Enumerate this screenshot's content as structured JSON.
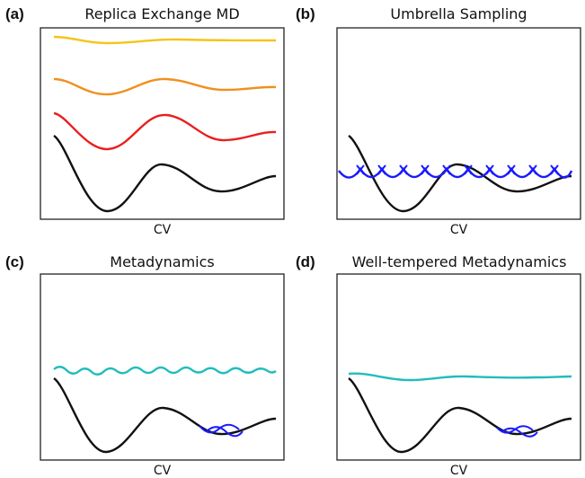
{
  "panels": [
    {
      "letter": "(a)",
      "title": "Replica Exchange MD",
      "xlabel": "CV"
    },
    {
      "letter": "(b)",
      "title": "Umbrella Sampling",
      "xlabel": "CV"
    },
    {
      "letter": "(c)",
      "title": "Metadynamics",
      "xlabel": "CV"
    },
    {
      "letter": "(d)",
      "title": "Well-tempered Metadynamics",
      "xlabel": "CV"
    }
  ],
  "colors": {
    "free_energy": "#111111",
    "replica_hot": "#f5c518",
    "replica_warm": "#f0901e",
    "replica_mid": "#e8201e",
    "umbrella": "#1a1aff",
    "bias": "#22bcbc",
    "gaussians": "#1a1aff",
    "frame": "#222222"
  }
}
